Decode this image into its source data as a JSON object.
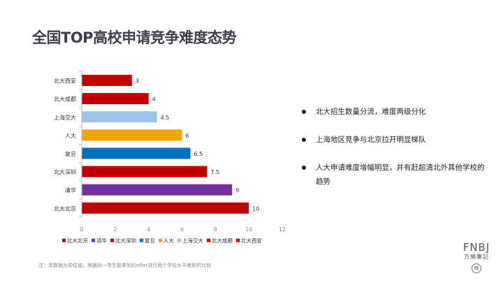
{
  "title": "全国TOP高校申请竞争难度态势",
  "chart_data": {
    "type": "bar",
    "orientation": "horizontal",
    "categories": [
      "北大西安",
      "北大成都",
      "上海交大",
      "人大",
      "复旦",
      "北大深圳",
      "清华",
      "北大北京"
    ],
    "values": [
      3,
      4,
      4.5,
      6,
      6.5,
      7.5,
      9,
      10
    ],
    "colors": [
      "#c00000",
      "#c00000",
      "#9dc3e6",
      "#f0a30a",
      "#0070c0",
      "#c00000",
      "#7030a0",
      "#c00000"
    ],
    "data_labels": [
      "3",
      "4",
      "4.5",
      "6",
      "6.5",
      "7.5",
      "9",
      "10"
    ],
    "x_ticks": [
      "0",
      "2",
      "4",
      "6",
      "8",
      "10",
      "12"
    ],
    "xlim": [
      0,
      12
    ],
    "legend": {
      "placement": "bottom",
      "entries": [
        "北大北京",
        "清华",
        "北大深圳",
        "复旦",
        "人大",
        "上海交大",
        "北大成都",
        "北大西安"
      ],
      "colors": [
        "#c00000",
        "#7030a0",
        "#c00000",
        "#0070c0",
        "#f0a30a",
        "#9dc3e6",
        "#c00000",
        "#c00000"
      ]
    }
  },
  "bullets": [
    "北大招生数量分流，难度两级分化",
    "上海地区竞争与北京拉开明显梯队",
    "人大申请难度增幅明显，并有赶超清北外其他学校的趋势"
  ],
  "note": "注：本数据为预估值，根据同一学生能拿到的offer进行两个学校水平差距的比较",
  "logo": {
    "main": "FNBJ",
    "sub": "方楠筆記",
    "seal": "楠"
  }
}
